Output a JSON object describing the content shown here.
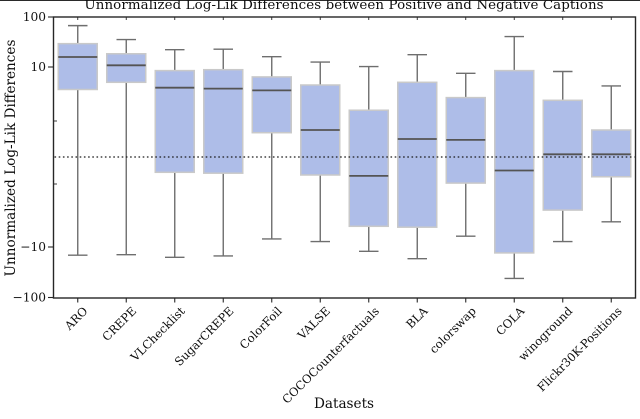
{
  "chart_data": {
    "type": "box",
    "title": "Unnormalized Log-Lik Differences between Positive and Negative Captions",
    "xlabel": "Datasets",
    "ylabel": "Unnormalized Log-Lik Differences",
    "y_scale": "symlog",
    "ylim": [
      -100,
      100
    ],
    "linear_region": [
      -10,
      10
    ],
    "y_ticks": [
      {
        "value": 100,
        "label": "100"
      },
      {
        "value": 10,
        "label": "10"
      },
      {
        "value": -10,
        "label": "−10"
      },
      {
        "value": -100,
        "label": "−100"
      }
    ],
    "y_minor_tick_values": [
      4,
      -3
    ],
    "zero_reference_line": 0,
    "grid": false,
    "legend": null,
    "categories": [
      "ARO",
      "CREPE",
      "VLChecklist",
      "SugarCREPE",
      "ColorFoil",
      "VALSE",
      "COCOCounterfactuals",
      "BLA",
      "colorswap",
      "COLA",
      "winoground",
      "Flickr30K-Positions"
    ],
    "boxes": [
      {
        "category": "ARO",
        "whisker_low": -14.5,
        "q1": 7.5,
        "median": 15.8,
        "q3": 29.0,
        "whisker_high": 66.0
      },
      {
        "category": "CREPE",
        "whisker_low": -14.2,
        "q1": 8.3,
        "median": 10.8,
        "q3": 18.3,
        "whisker_high": 35.0
      },
      {
        "category": "VLChecklist",
        "whisker_low": -16.0,
        "q1": -1.7,
        "median": 7.7,
        "q3": 9.6,
        "whisker_high": 22.0
      },
      {
        "category": "SugarCREPE",
        "whisker_low": -15.0,
        "q1": -1.8,
        "median": 7.6,
        "q3": 9.7,
        "whisker_high": 22.5
      },
      {
        "category": "ColorFoil",
        "whisker_low": -9.1,
        "q1": 2.7,
        "median": 7.4,
        "q3": 8.9,
        "whisker_high": 16.0
      },
      {
        "category": "VALSE",
        "whisker_low": -9.4,
        "q1": -2.0,
        "median": 3.0,
        "q3": 8.0,
        "whisker_high": 12.5
      },
      {
        "category": "COCOCounterfactuals",
        "whisker_low": -12.2,
        "q1": -7.7,
        "median": -2.1,
        "q3": 5.2,
        "whisker_high": 10.2
      },
      {
        "category": "BLA",
        "whisker_low": -17.0,
        "q1": -7.8,
        "median": 2.0,
        "q3": 8.3,
        "whisker_high": 17.5
      },
      {
        "category": "colorswap",
        "whisker_low": -8.8,
        "q1": -2.9,
        "median": 1.9,
        "q3": 6.6,
        "whisker_high": 9.3
      },
      {
        "category": "COLA",
        "whisker_low": -42.0,
        "q1": -13.1,
        "median": -1.5,
        "q3": 9.6,
        "whisker_high": 40.0
      },
      {
        "category": "winoground",
        "whisker_low": -9.4,
        "q1": -5.9,
        "median": 0.3,
        "q3": 6.3,
        "whisker_high": 9.5
      },
      {
        "category": "Flickr30K-Positions",
        "whisker_low": -7.2,
        "q1": -2.2,
        "median": 0.3,
        "q3": 3.0,
        "whisker_high": 7.9
      }
    ],
    "colors": {
      "box_fill": "#aebde8",
      "box_edge": "#c9c9c9",
      "median_line": "#545454",
      "whisker": "#6e6e6e",
      "zero_line": "#1a1a1a",
      "axis": "#262626",
      "text": "#111111"
    }
  }
}
